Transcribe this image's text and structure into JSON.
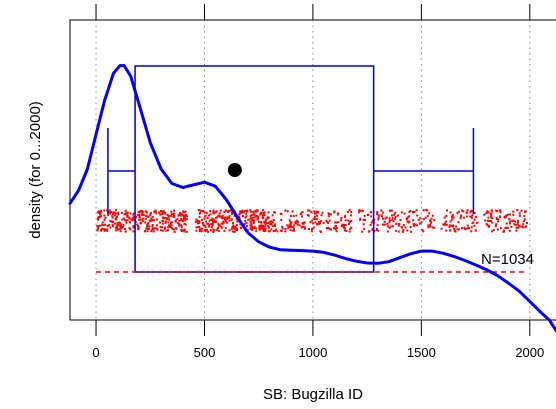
{
  "chart_data": {
    "type": "boxplot-density",
    "xlabel": "SB: Bugzilla ID",
    "ylabel": "density (for 0...2000)",
    "x_ticks": [
      0,
      500,
      1000,
      1500,
      2000
    ],
    "x_tick_labels": [
      "0",
      "500",
      "1000",
      "1500",
      "2000"
    ],
    "xlim": [
      -120,
      2130
    ],
    "grid_x": true,
    "annotation": "N=1034",
    "n": 1034,
    "mean": 640,
    "boxplot": {
      "whisker_low": 55,
      "q1": 180,
      "q3": 1280,
      "whisker_high": 1740
    },
    "density_curve": {
      "x": [
        -120,
        -80,
        -40,
        0,
        40,
        80,
        110,
        130,
        160,
        200,
        250,
        300,
        350,
        400,
        450,
        500,
        550,
        600,
        650,
        700,
        750,
        800,
        850,
        900,
        950,
        1000,
        1050,
        1100,
        1150,
        1200,
        1250,
        1300,
        1350,
        1400,
        1450,
        1500,
        1550,
        1600,
        1650,
        1700,
        1750,
        1800,
        1850,
        1900,
        1950,
        2000,
        2050,
        2090,
        2130
      ],
      "y": [
        0.44,
        0.49,
        0.57,
        0.7,
        0.83,
        0.93,
        0.96,
        0.96,
        0.92,
        0.81,
        0.67,
        0.57,
        0.515,
        0.5,
        0.51,
        0.52,
        0.505,
        0.455,
        0.39,
        0.33,
        0.295,
        0.275,
        0.265,
        0.263,
        0.262,
        0.26,
        0.255,
        0.245,
        0.232,
        0.222,
        0.215,
        0.214,
        0.22,
        0.235,
        0.25,
        0.26,
        0.26,
        0.252,
        0.24,
        0.225,
        0.208,
        0.19,
        0.168,
        0.14,
        0.11,
        0.07,
        0.03,
        0.0,
        -0.05
      ]
    },
    "colors": {
      "density": "#0000ff",
      "box": "#0000cc",
      "points": "#ff0000",
      "baseline": "#ff0000",
      "mean_marker": "#000000",
      "grid": "#888888"
    }
  }
}
